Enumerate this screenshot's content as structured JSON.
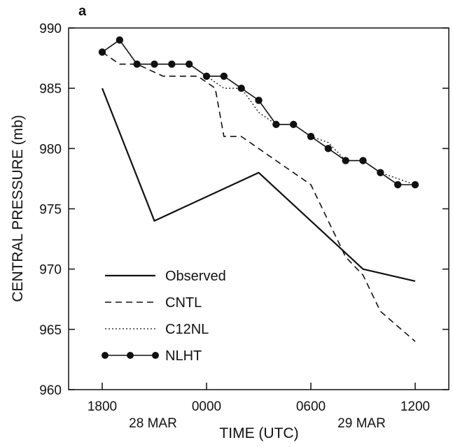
{
  "chart_data": {
    "type": "line",
    "panel_label": "a",
    "xlabel": "TIME (UTC)",
    "ylabel": "CENTRAL PRESSURE (mb)",
    "xlim": [
      0,
      40
    ],
    "ylim": [
      960,
      990
    ],
    "grid": false,
    "legend_position": "bottom-left",
    "x_units": "hours after 1800 UTC 28 MAR",
    "x_ticks": [
      {
        "x": 0,
        "label": "1800"
      },
      {
        "x": 6,
        "label": "0000"
      },
      {
        "x": 12,
        "label": "0600"
      },
      {
        "x": 18,
        "label": "1200"
      }
    ],
    "y_ticks": [
      960,
      965,
      970,
      975,
      980,
      985,
      990
    ],
    "date_labels": [
      {
        "x": 3,
        "label": "28 MAR"
      },
      {
        "x": 15,
        "label": "29 MAR"
      }
    ],
    "series": [
      {
        "name": "Observed",
        "style": "solid",
        "color": "#111111",
        "points": [
          [
            0,
            985
          ],
          [
            3,
            974
          ],
          [
            9,
            978
          ],
          [
            15,
            970
          ],
          [
            18,
            969
          ]
        ]
      },
      {
        "name": "CNTL",
        "style": "dashed",
        "color": "#111111",
        "points": [
          [
            0,
            988
          ],
          [
            1,
            987
          ],
          [
            2,
            987
          ],
          [
            3.5,
            986
          ],
          [
            5.5,
            986
          ],
          [
            6.5,
            985
          ],
          [
            7,
            981
          ],
          [
            8,
            981
          ],
          [
            10,
            979
          ],
          [
            12,
            977
          ],
          [
            13,
            974
          ],
          [
            14,
            971
          ],
          [
            15,
            969.5
          ],
          [
            16,
            966.5
          ],
          [
            18,
            964
          ]
        ]
      },
      {
        "name": "C12NL",
        "style": "dotted",
        "color": "#111111",
        "points": [
          [
            0,
            988
          ],
          [
            1,
            989
          ],
          [
            2,
            987
          ],
          [
            3,
            987
          ],
          [
            4,
            987
          ],
          [
            5,
            987
          ],
          [
            6,
            986
          ],
          [
            7,
            985
          ],
          [
            8,
            985
          ],
          [
            9,
            983
          ],
          [
            10,
            982
          ],
          [
            11,
            982
          ],
          [
            12,
            981
          ],
          [
            13,
            980.5
          ],
          [
            14,
            979
          ],
          [
            15,
            979
          ],
          [
            16,
            978
          ],
          [
            17,
            977.5
          ],
          [
            18,
            977
          ]
        ]
      },
      {
        "name": "NLHT",
        "style": "solid-markers",
        "color": "#111111",
        "points": [
          [
            0,
            988
          ],
          [
            1,
            989
          ],
          [
            2,
            987
          ],
          [
            3,
            987
          ],
          [
            4,
            987
          ],
          [
            5,
            987
          ],
          [
            6,
            986
          ],
          [
            7,
            986
          ],
          [
            8,
            985
          ],
          [
            9,
            984
          ],
          [
            10,
            982
          ],
          [
            11,
            982
          ],
          [
            12,
            981
          ],
          [
            13,
            980
          ],
          [
            14,
            979
          ],
          [
            15,
            979
          ],
          [
            16,
            978
          ],
          [
            17,
            977
          ],
          [
            18,
            977
          ]
        ]
      }
    ]
  }
}
